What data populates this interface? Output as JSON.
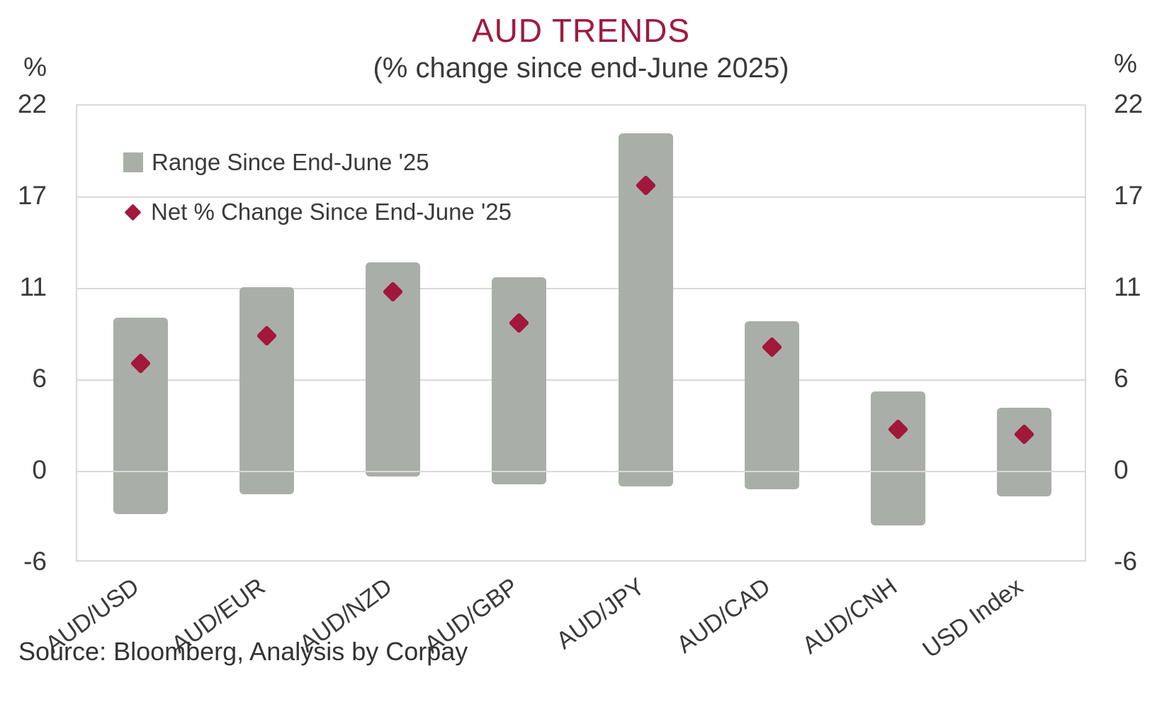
{
  "title": "AUD TRENDS",
  "subtitle": "(% change since end-June 2025)",
  "source": "Source: Bloomberg, Analysis by Corpay",
  "axis": {
    "unit_label_left": "%",
    "unit_label_right": "%",
    "tick_labels": [
      "22",
      "17",
      "11",
      "6",
      "0",
      "-6"
    ]
  },
  "legend": {
    "range_label": "Range Since End-June '25",
    "net_label": "Net % Change Since End-June '25"
  },
  "colors": {
    "title": "#9e1b40",
    "bar": "#a9afa8",
    "marker": "#a2173c",
    "gridline": "#d9d9d9",
    "text": "#3a3a3a"
  },
  "chart_data": {
    "type": "bar",
    "subtype": "floating-range-bars-with-diamond-markers",
    "title": "AUD TRENDS",
    "subtitle": "(% change since end-June 2025)",
    "ylabel": "%",
    "ylim": [
      -6,
      22
    ],
    "ytick_labels": [
      22,
      17,
      11,
      6,
      0,
      -6
    ],
    "grid": "horizontal",
    "legend_position": "top-left-inside",
    "categories": [
      "AUD/USD",
      "AUD/EUR",
      "AUD/NZD",
      "AUD/GBP",
      "AUD/JPY",
      "AUD/CAD",
      "AUD/CNH",
      "USD Index"
    ],
    "series": [
      {
        "name": "Range Since End-June '25",
        "type": "floating-bar",
        "color": "#a9afa8",
        "high": [
          9.0,
          10.9,
          12.4,
          11.5,
          20.3,
          8.8,
          4.5,
          3.5
        ],
        "low": [
          -3.0,
          -1.8,
          -0.7,
          -1.2,
          -1.3,
          -1.5,
          -3.7,
          -1.9
        ]
      },
      {
        "name": "Net % Change Since End-June '25",
        "type": "scatter-diamond",
        "color": "#a2173c",
        "values": [
          6.2,
          7.9,
          10.6,
          8.7,
          17.1,
          7.2,
          2.2,
          1.9
        ]
      }
    ]
  }
}
